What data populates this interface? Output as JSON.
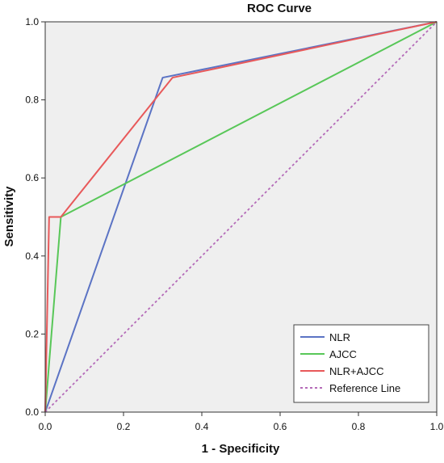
{
  "chart_data": {
    "type": "line",
    "title": "ROC Curve",
    "xlabel": "1 - Specificity",
    "ylabel": "Sensitivity",
    "xlim": [
      0,
      1
    ],
    "ylim": [
      0,
      1
    ],
    "xticks": [
      0.0,
      0.2,
      0.4,
      0.6,
      0.8,
      1.0
    ],
    "yticks": [
      0.0,
      0.2,
      0.4,
      0.6,
      0.8,
      1.0
    ],
    "xtick_labels": [
      "0.0",
      "0.2",
      "0.4",
      "0.6",
      "0.8",
      "1.0"
    ],
    "ytick_labels": [
      "0.0",
      "0.2",
      "0.4",
      "0.6",
      "0.8",
      "1.0"
    ],
    "grid": false,
    "legend_position": "bottom-right",
    "plot_background": "#efefef",
    "series": [
      {
        "name": "NLR",
        "color": "#5b73c4",
        "dash": "solid",
        "points": [
          [
            0.0,
            0.0
          ],
          [
            0.3,
            0.857
          ],
          [
            1.0,
            1.0
          ]
        ]
      },
      {
        "name": "AJCC",
        "color": "#58c758",
        "dash": "solid",
        "points": [
          [
            0.0,
            0.0
          ],
          [
            0.04,
            0.5
          ],
          [
            1.0,
            1.0
          ]
        ]
      },
      {
        "name": "NLR+AJCC",
        "color": "#e8595a",
        "dash": "solid",
        "points": [
          [
            0.0,
            0.0
          ],
          [
            0.01,
            0.5
          ],
          [
            0.04,
            0.5
          ],
          [
            0.325,
            0.857
          ],
          [
            1.0,
            1.0
          ]
        ]
      },
      {
        "name": "Reference Line",
        "color": "#b46ab8",
        "dash": "dotted",
        "points": [
          [
            0.0,
            0.0
          ],
          [
            1.0,
            1.0
          ]
        ]
      }
    ]
  }
}
